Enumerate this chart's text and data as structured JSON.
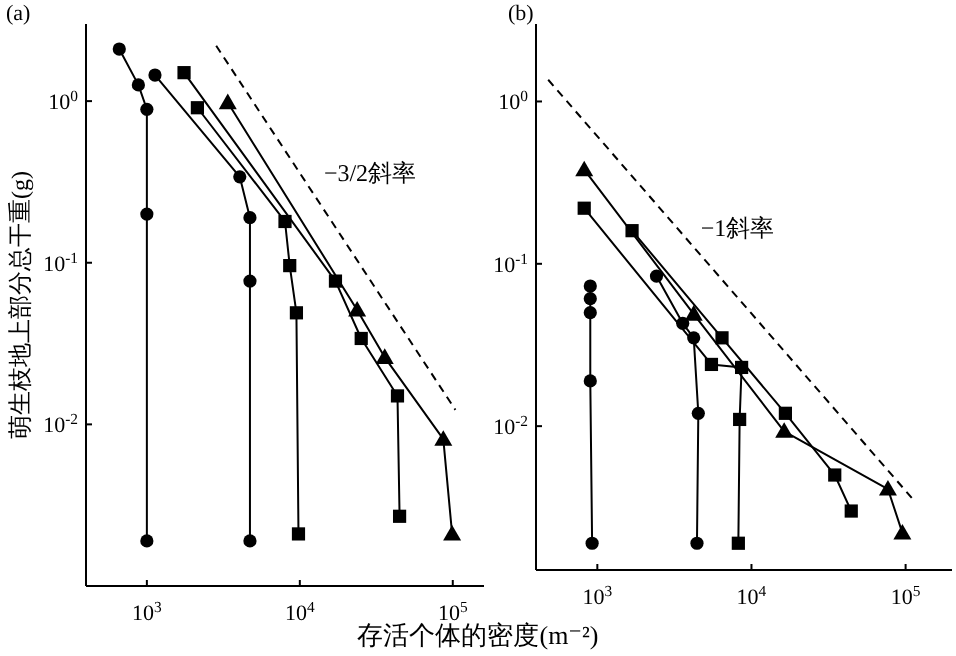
{
  "chart_data": [
    {
      "type": "line",
      "title": "(a)",
      "ylabel": "萌生枝地上部分总干重(g)",
      "xlabel": "存活个体的密度(m⁻²)",
      "log": "xy",
      "xlim": [
        400,
        160000
      ],
      "ylim": [
        0.001,
        3
      ],
      "xticks": [
        {
          "value": 1000,
          "label": "10$^{3}$"
        },
        {
          "value": 10000,
          "label": "10$^{4}$"
        },
        {
          "value": 100000,
          "label": "10$^{5}$"
        }
      ],
      "yticks": [
        {
          "value": 1,
          "label": "10$^{0}$"
        },
        {
          "value": 0.1,
          "label": "10$^{-1}$"
        },
        {
          "value": 0.01,
          "label": "10$^{-2}$"
        }
      ],
      "series": [
        {
          "color": "#000000",
          "marker": "circle",
          "x": [
            1000,
            1000,
            1000,
            880,
            660
          ],
          "values": [
            0.0019,
            0.2,
            0.89,
            1.26,
            2.1
          ]
        },
        {
          "color": "#000000",
          "marker": "circle",
          "x": [
            4720,
            4720,
            4720,
            4050,
            1130
          ],
          "values": [
            0.0019,
            0.077,
            0.19,
            0.34,
            1.45
          ]
        },
        {
          "color": "#000000",
          "marker": "square",
          "x": [
            9800,
            9500,
            8590,
            8000,
            2140
          ],
          "values": [
            0.0021,
            0.049,
            0.096,
            0.18,
            0.91
          ]
        },
        {
          "color": "#000000",
          "marker": "square",
          "x": [
            44900,
            43500,
            25200,
            17100,
            1750
          ],
          "values": [
            0.0027,
            0.015,
            0.034,
            0.077,
            1.5
          ]
        },
        {
          "color": "#000000",
          "marker": "triangle",
          "x": [
            99000,
            86700,
            35900,
            23700,
            3380
          ],
          "values": [
            0.0021,
            0.0081,
            0.026,
            0.051,
            0.98
          ]
        },
        {
          "name": "−3/2斜率",
          "color": "#000000",
          "marker": "none",
          "line_style": "dashed",
          "x": [
            2840,
            104000
          ],
          "values": [
            2.2,
            0.0123
          ]
        }
      ]
    },
    {
      "type": "line",
      "title": "(b)",
      "log": "xy",
      "xlim": [
        400,
        200000
      ],
      "ylim": [
        0.0013,
        3
      ],
      "xticks": [
        {
          "value": 1000,
          "label": "10$^{3}$"
        },
        {
          "value": 10000,
          "label": "10$^{4}$"
        },
        {
          "value": 100000,
          "label": "10$^{5}$"
        }
      ],
      "yticks": [
        {
          "value": 1,
          "label": "10$^{0}$"
        },
        {
          "value": 0.1,
          "label": "10$^{-1}$"
        },
        {
          "value": 0.01,
          "label": "10$^{-2}$"
        }
      ],
      "series": [
        {
          "color": "#000000",
          "marker": "circle",
          "x": [
            925,
            900,
            900,
            900,
            900
          ],
          "values": [
            0.0019,
            0.019,
            0.05,
            0.061,
            0.073
          ]
        },
        {
          "color": "#000000",
          "marker": "circle",
          "x": [
            4430,
            4520,
            4220,
            3580,
            2420
          ],
          "values": [
            0.0019,
            0.012,
            0.035,
            0.043,
            0.084
          ]
        },
        {
          "color": "#000000",
          "marker": "square",
          "x": [
            8220,
            8380,
            8630,
            5500,
            822
          ],
          "values": [
            0.0019,
            0.011,
            0.023,
            0.024,
            0.22
          ]
        },
        {
          "color": "#000000",
          "marker": "square",
          "x": [
            44400,
            34700,
            16600,
            6440,
            1680
          ],
          "values": [
            0.003,
            0.005,
            0.012,
            0.035,
            0.16
          ]
        },
        {
          "color": "#000000",
          "marker": "triangle",
          "x": [
            95300,
            76800,
            16300,
            4220,
            822
          ],
          "values": [
            0.0022,
            0.0041,
            0.0093,
            0.049,
            0.38
          ]
        },
        {
          "name": "−1斜率",
          "color": "#000000",
          "marker": "none",
          "line_style": "dashed",
          "x": [
            480,
            116000
          ],
          "values": [
            1.36,
            0.0034
          ]
        }
      ]
    }
  ]
}
